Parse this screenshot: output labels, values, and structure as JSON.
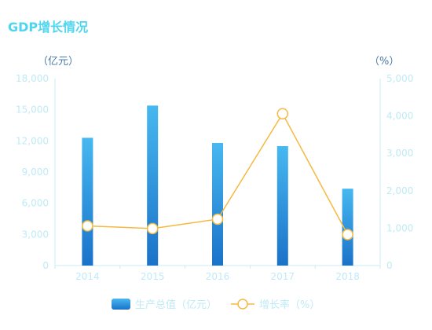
{
  "chart_data": {
    "type": "bar",
    "title": "GDP增长情况",
    "categories": [
      "2014",
      "2015",
      "2016",
      "2017",
      "2018"
    ],
    "y_left": {
      "unit_label": "（亿元）",
      "ticks": [
        "18,000",
        "15,000",
        "12,000",
        "9,000",
        "6,000",
        "3,000",
        "0"
      ],
      "tick_values": [
        18000,
        15000,
        12000,
        9000,
        6000,
        3000,
        0
      ],
      "ylim": [
        0,
        18000
      ]
    },
    "y_right": {
      "unit_label": "（%）",
      "ticks": [
        "5,000",
        "4,000",
        "3,000",
        "2,000",
        "1,000",
        "0"
      ],
      "tick_values": [
        5000,
        4000,
        3000,
        2000,
        1000,
        0
      ],
      "ylim": [
        0,
        5000
      ]
    },
    "series": [
      {
        "name": "生产总值（亿元）",
        "type": "bar",
        "axis": "left",
        "values": [
          12300,
          15400,
          11800,
          11500,
          7400
        ]
      },
      {
        "name": "增长率（%）",
        "type": "line",
        "axis": "right",
        "values": [
          1060,
          990,
          1240,
          4060,
          830
        ]
      }
    ],
    "grid": false,
    "legend_position": "bottom-center",
    "colors": {
      "title": "#4fd6ee",
      "unit": "#4a78a8",
      "tick": "#bfeaf7",
      "axis": "#c9eef8",
      "bar_top": "#47b8f0",
      "bar_bottom": "#1a72c9",
      "line": "#f5b942",
      "legend_text": "#bfeaf7"
    }
  }
}
